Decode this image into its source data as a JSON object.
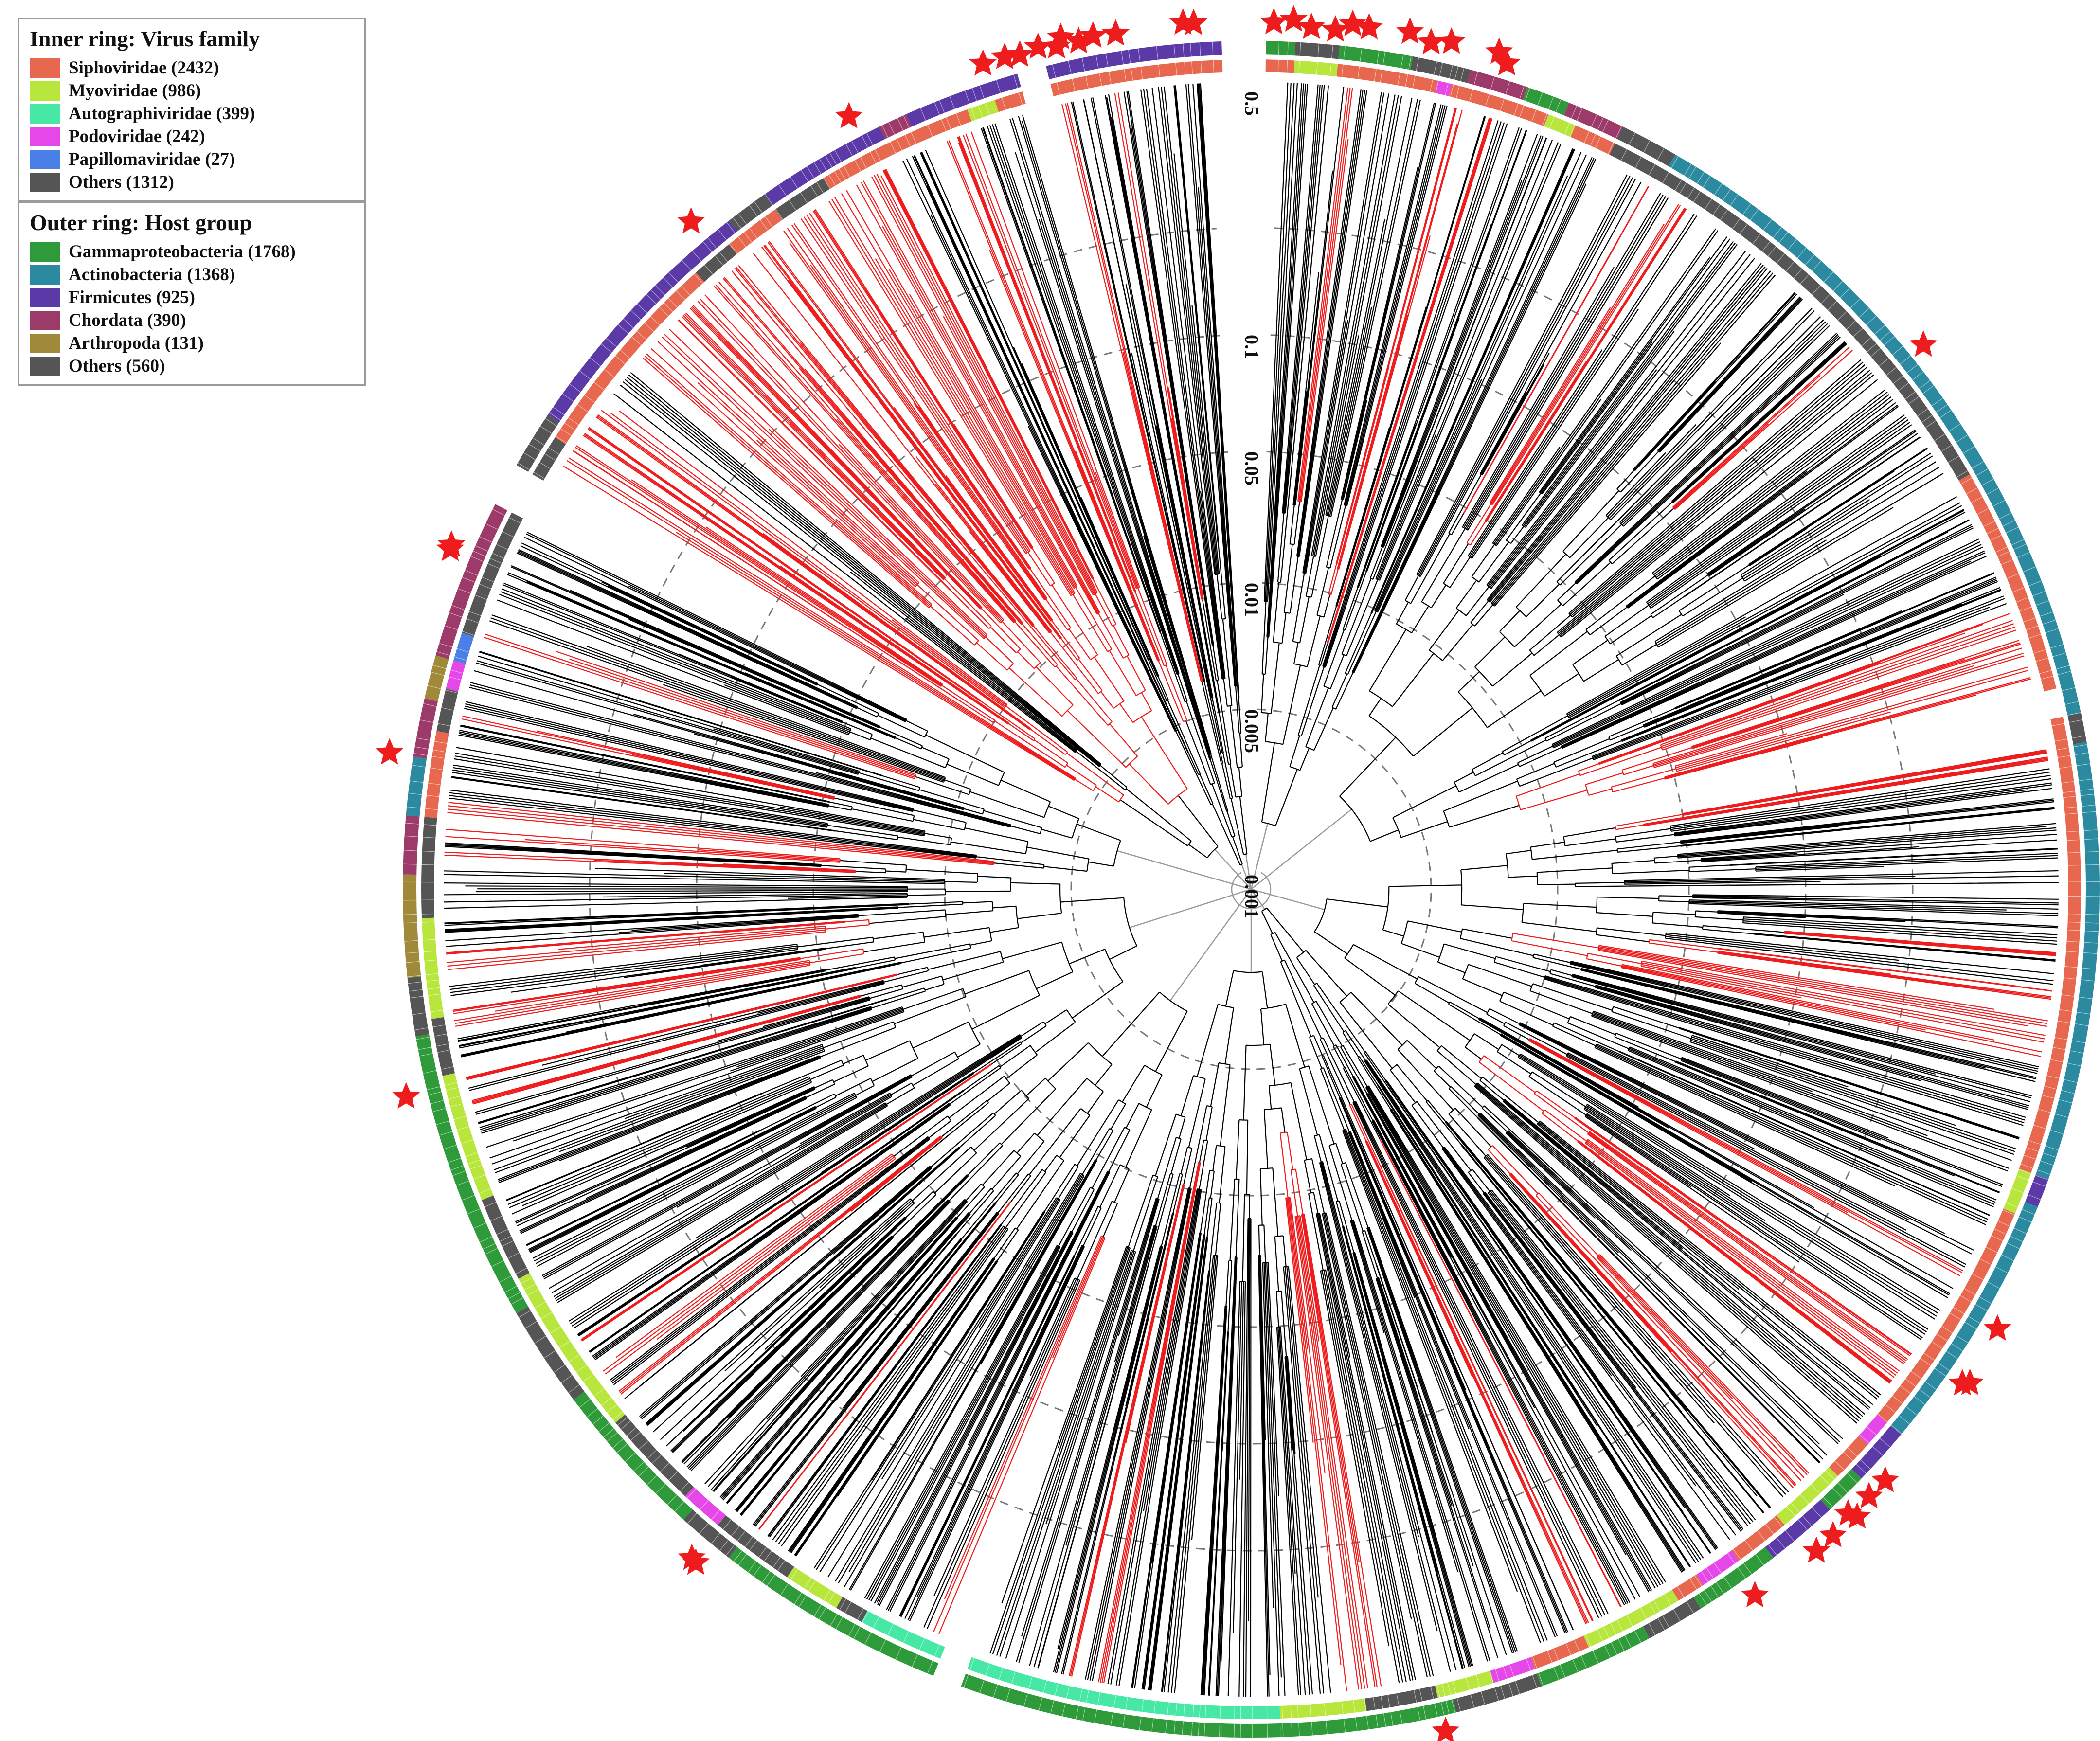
{
  "figure": {
    "inner_ring": {
      "title": "Inner ring: Virus family",
      "items": [
        {
          "label": "Siphoviridae (2432)",
          "color": "#e8684f",
          "count": 2432
        },
        {
          "label": "Myoviridae (986)",
          "color": "#b8e63c",
          "count": 986
        },
        {
          "label": "Autographiviridae (399)",
          "color": "#47e8a5",
          "count": 399
        },
        {
          "label": "Podoviridae (242)",
          "color": "#e547e8",
          "count": 242
        },
        {
          "label": "Papillomaviridae (27)",
          "color": "#4a7fe8",
          "count": 27
        },
        {
          "label": "Others (1312)",
          "color": "#555555",
          "count": 1312
        }
      ]
    },
    "outer_ring": {
      "title": "Outer ring: Host group",
      "items": [
        {
          "label": "Gammaproteobacteria (1768)",
          "color": "#2e9a3a",
          "count": 1768
        },
        {
          "label": "Actinobacteria (1368)",
          "color": "#2c8aa0",
          "count": 1368
        },
        {
          "label": "Firmicutes (925)",
          "color": "#5b3aa8",
          "count": 925
        },
        {
          "label": "Chordata (390)",
          "color": "#9c3a6a",
          "count": 390
        },
        {
          "label": "Arthropoda (131)",
          "color": "#a08a3a",
          "count": 131
        },
        {
          "label": "Others (560)",
          "color": "#555555",
          "count": 560
        }
      ]
    },
    "scale_labels": [
      "0.001",
      "0.005",
      "0.01",
      "0.05",
      "0.1",
      "0.5"
    ],
    "highlight_color": "#ee1c1c"
  }
}
